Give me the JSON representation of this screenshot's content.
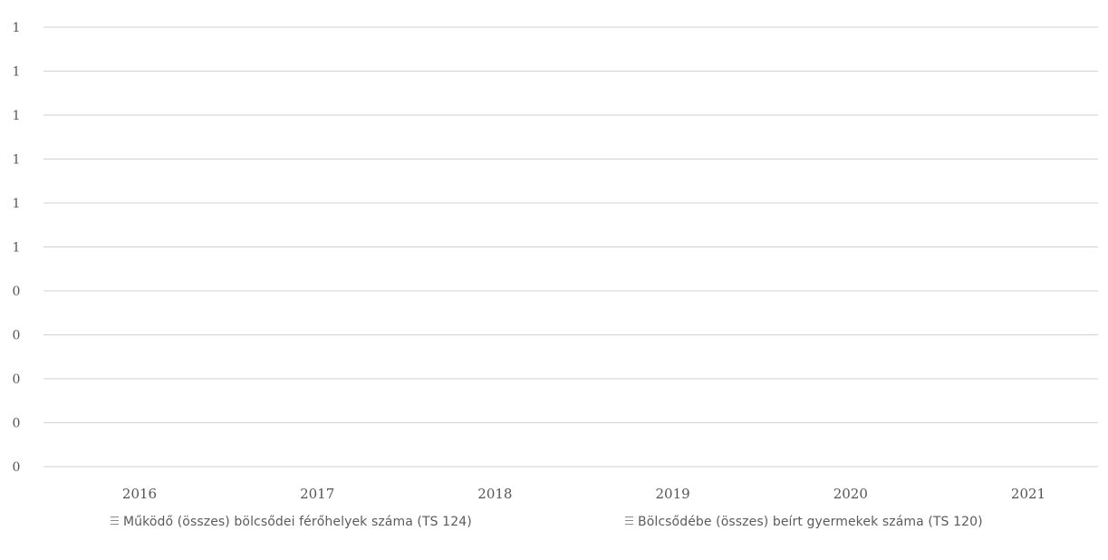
{
  "chart_data": {
    "type": "bar",
    "title": "",
    "categories": [
      "2016",
      "2017",
      "2018",
      "2019",
      "2020",
      "2021"
    ],
    "y_tick_labels": [
      "1",
      "1",
      "1",
      "1",
      "1",
      "1",
      "0",
      "0",
      "0",
      "0",
      "0"
    ],
    "ylim": [
      0,
      1
    ],
    "grid": true,
    "legend_position": "bottom",
    "series": [
      {
        "name": "Működő (összes) bölcsődei férőhelyek száma (TS 124)",
        "values": [
          0,
          0,
          0,
          0,
          0,
          0
        ],
        "color": "#8a8a8a"
      },
      {
        "name": "Bölcsődébe (összes) beírt gyermekek száma (TS 120)",
        "values": [
          0,
          0,
          0,
          0,
          0,
          0
        ],
        "color": "#8a8a8a"
      }
    ]
  }
}
